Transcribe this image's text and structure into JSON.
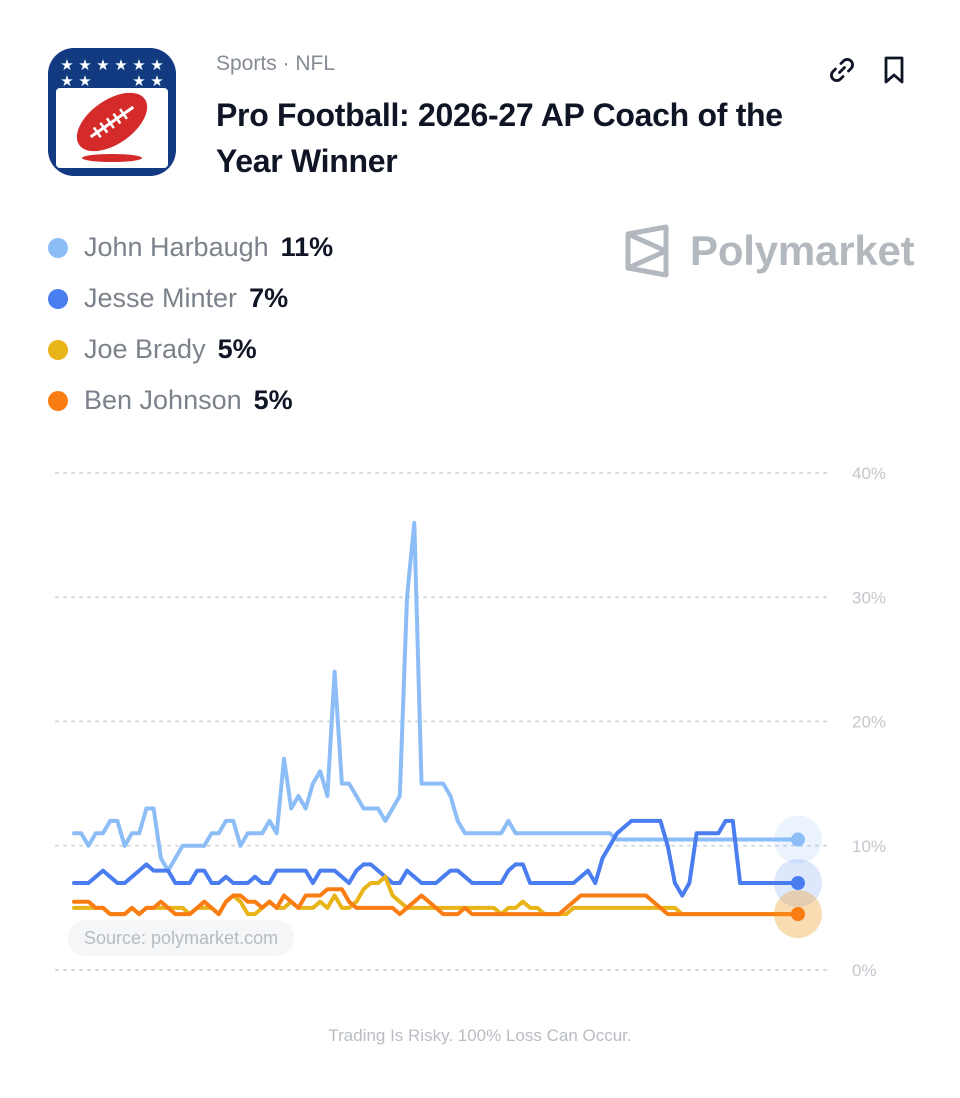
{
  "header": {
    "breadcrumb": "Sports · NFL",
    "title": "Pro Football: 2026-27 AP Coach of the Year Winner",
    "icons": {
      "app": "nfl-football-logo-icon",
      "link": "link-icon",
      "bookmark": "bookmark-icon"
    }
  },
  "brand": {
    "name": "Polymarket",
    "icon": "polymarket-logo-icon"
  },
  "legend": [
    {
      "name": "John Harbaugh",
      "value": "11%",
      "color": "#8cbdf7"
    },
    {
      "name": "Jesse Minter",
      "value": "7%",
      "color": "#4a7df0"
    },
    {
      "name": "Joe Brady",
      "value": "5%",
      "color": "#e8b417"
    },
    {
      "name": "Ben Johnson",
      "value": "5%",
      "color": "#fa7d14"
    }
  ],
  "chart_data": {
    "type": "line",
    "ylim": [
      0,
      40
    ],
    "yticks": [
      "40%",
      "30%",
      "20%",
      "10%",
      "0%"
    ],
    "grid": true,
    "legend_placement": "top-left",
    "x": [
      0,
      1,
      2,
      3,
      4,
      5,
      6,
      7,
      8,
      9,
      10,
      11,
      12,
      13,
      14,
      15,
      16,
      17,
      18,
      19,
      20,
      21,
      22,
      23,
      24,
      25,
      26,
      27,
      28,
      29,
      30,
      31,
      32,
      33,
      34,
      35,
      36,
      37,
      38,
      39,
      40,
      41,
      42,
      43,
      44,
      45,
      46,
      47,
      48,
      49,
      50,
      51,
      52,
      53,
      54,
      55,
      56,
      57,
      58,
      59,
      60,
      61,
      62,
      63,
      64,
      65,
      66,
      67,
      68,
      69,
      70,
      71,
      72,
      73,
      74,
      75,
      76,
      77,
      78,
      79,
      80,
      81,
      82,
      83,
      84,
      85,
      86,
      87,
      88,
      89,
      90,
      91,
      92,
      93,
      94,
      95,
      96,
      97,
      98,
      99,
      100
    ],
    "series": [
      {
        "name": "John Harbaugh",
        "color": "#8cbdf7",
        "values": [
          11,
          11,
          10,
          11,
          11,
          12,
          12,
          10,
          11,
          11,
          13,
          13,
          9,
          8,
          9,
          10,
          10,
          10,
          10,
          11,
          11,
          12,
          12,
          10,
          11,
          11,
          11,
          12,
          11,
          17,
          13,
          14,
          13,
          15,
          16,
          14,
          24,
          15,
          15,
          14,
          13,
          13,
          13,
          12,
          13,
          14,
          30,
          36,
          15,
          15,
          15,
          15,
          14,
          12,
          11,
          11,
          11,
          11,
          11,
          11,
          12,
          11,
          11,
          11,
          11,
          11,
          11,
          11,
          11,
          11,
          11,
          11,
          11,
          11,
          11,
          10.5,
          10.5,
          10.5,
          10.5,
          10.5,
          10.5,
          10.5,
          10.5,
          10.5,
          10.5,
          10.5,
          10.5,
          10.5,
          10.5,
          10.5,
          10.5,
          10.5,
          10.5,
          10.5,
          10.5,
          10.5,
          10.5,
          10.5,
          10.5,
          10.5,
          10.5
        ]
      },
      {
        "name": "Jesse Minter",
        "color": "#4a7df0",
        "values": [
          7,
          7,
          7,
          7.5,
          8,
          7.5,
          7,
          7,
          7.5,
          8,
          8.5,
          8,
          8,
          8,
          7,
          7,
          7,
          8,
          8,
          7,
          7,
          7.5,
          7,
          7,
          7,
          7.5,
          7,
          7,
          8,
          8,
          8,
          8,
          8,
          7,
          8,
          8,
          8,
          7.5,
          7,
          8,
          8.5,
          8.5,
          8,
          7.5,
          7,
          7,
          8,
          7.5,
          7,
          7,
          7,
          7.5,
          8,
          8,
          7.5,
          7,
          7,
          7,
          7,
          7,
          8,
          8.5,
          8.5,
          7,
          7,
          7,
          7,
          7,
          7,
          7,
          7.5,
          8,
          7,
          9,
          10,
          11,
          11.5,
          12,
          12,
          12,
          12,
          12,
          10,
          7,
          6,
          7,
          11,
          11,
          11,
          11,
          12,
          12,
          7,
          7,
          7,
          7,
          7,
          7,
          7,
          7,
          7
        ]
      },
      {
        "name": "Joe Brady",
        "color": "#e8b417",
        "values": [
          5,
          5,
          5,
          5,
          5,
          4.5,
          4.5,
          4.5,
          5,
          4.5,
          5,
          5,
          5,
          5,
          5,
          5,
          4.5,
          5,
          5,
          5,
          4.5,
          5.5,
          6,
          5.5,
          4.5,
          4.5,
          5,
          5.5,
          5,
          5,
          5.5,
          5,
          5,
          5,
          5.5,
          5,
          6,
          5,
          5,
          5.5,
          6.5,
          7,
          7,
          7.5,
          6,
          5.5,
          5,
          5,
          5,
          5,
          5,
          5,
          5,
          5,
          5,
          5,
          5,
          5,
          5,
          4.5,
          5,
          5,
          5.5,
          5,
          5,
          4.5,
          4.5,
          4.5,
          4.5,
          5,
          5,
          5,
          5,
          5,
          5,
          5,
          5,
          5,
          5,
          5,
          5,
          5,
          5,
          5,
          4.5,
          4.5,
          4.5,
          4.5,
          4.5,
          4.5,
          4.5,
          4.5,
          4.5,
          4.5,
          4.5,
          4.5,
          4.5,
          4.5,
          4.5,
          4.5,
          4.5
        ]
      },
      {
        "name": "Ben Johnson",
        "color": "#fa7d14",
        "values": [
          5.5,
          5.5,
          5.5,
          5,
          5,
          4.5,
          4.5,
          4.5,
          5,
          4.5,
          5,
          5,
          5.5,
          5,
          4.5,
          4.5,
          4.5,
          5,
          5.5,
          5,
          4.5,
          5.5,
          6,
          6,
          5.5,
          5.5,
          5,
          5.5,
          5,
          6,
          5.5,
          5,
          6,
          6,
          6,
          6.5,
          6.5,
          6.5,
          5.5,
          5,
          5,
          5,
          5,
          5,
          5,
          4.5,
          5,
          5.5,
          6,
          5.5,
          5,
          4.5,
          4.5,
          4.5,
          5,
          4.5,
          4.5,
          4.5,
          4.5,
          4.5,
          4.5,
          4.5,
          4.5,
          4.5,
          4.5,
          4.5,
          4.5,
          4.5,
          5,
          5.5,
          6,
          6,
          6,
          6,
          6,
          6,
          6,
          6,
          6,
          6,
          5.5,
          5,
          4.5,
          4.5,
          4.5,
          4.5,
          4.5,
          4.5,
          4.5,
          4.5,
          4.5,
          4.5,
          4.5,
          4.5,
          4.5,
          4.5,
          4.5,
          4.5,
          4.5,
          4.5,
          4.5
        ]
      }
    ]
  },
  "footer": {
    "source": "Source: polymarket.com",
    "disclaimer": "Trading Is Risky. 100% Loss Can Occur."
  }
}
